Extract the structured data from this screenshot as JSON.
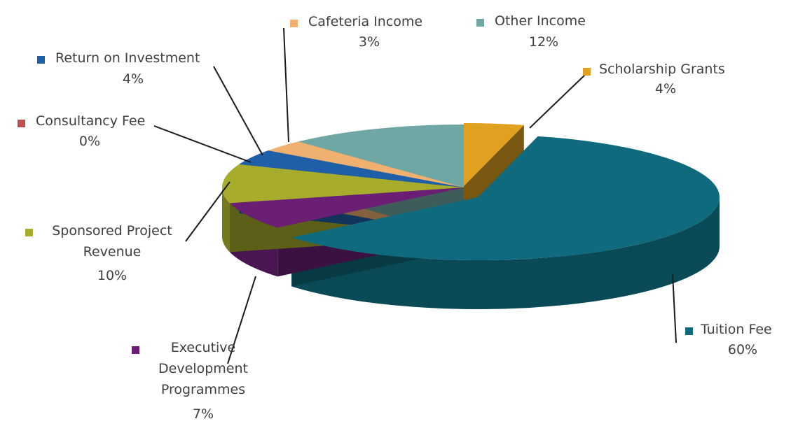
{
  "chart_data": {
    "type": "pie",
    "title": "",
    "slices": [
      {
        "label": "Scholarship Grants",
        "value": 4,
        "value_label": "4%",
        "color": "#e0a020",
        "label_lines": [
          "Scholarship Grants"
        ]
      },
      {
        "label": "Tuition Fee",
        "value": 60,
        "value_label": "60%",
        "color": "#0e6a7c",
        "label_lines": [
          "Tuition Fee"
        ]
      },
      {
        "label": "Executive Development Programmes",
        "value": 7,
        "value_label": "7%",
        "color": "#6a1f74",
        "label_lines": [
          "Executive",
          "Development",
          "Programmes"
        ]
      },
      {
        "label": "Sponsored Project Revenue",
        "value": 10,
        "value_label": "10%",
        "color": "#a8ac2c",
        "label_lines": [
          "Sponsored Project",
          "Revenue"
        ]
      },
      {
        "label": "Consultancy Fee",
        "value": 0,
        "value_label": "0%",
        "color": "#c0504d",
        "label_lines": [
          "Consultancy Fee"
        ]
      },
      {
        "label": "Return on Investment",
        "value": 4,
        "value_label": "4%",
        "color": "#1f5fa8",
        "label_lines": [
          "Return on Investment"
        ]
      },
      {
        "label": "Cafeteria Income",
        "value": 3,
        "value_label": "3%",
        "color": "#f0b070",
        "label_lines": [
          "Cafeteria Income"
        ]
      },
      {
        "label": "Other Income",
        "value": 12,
        "value_label": "12%",
        "color": "#6fa7a4",
        "label_lines": [
          "Other Income"
        ]
      }
    ]
  }
}
